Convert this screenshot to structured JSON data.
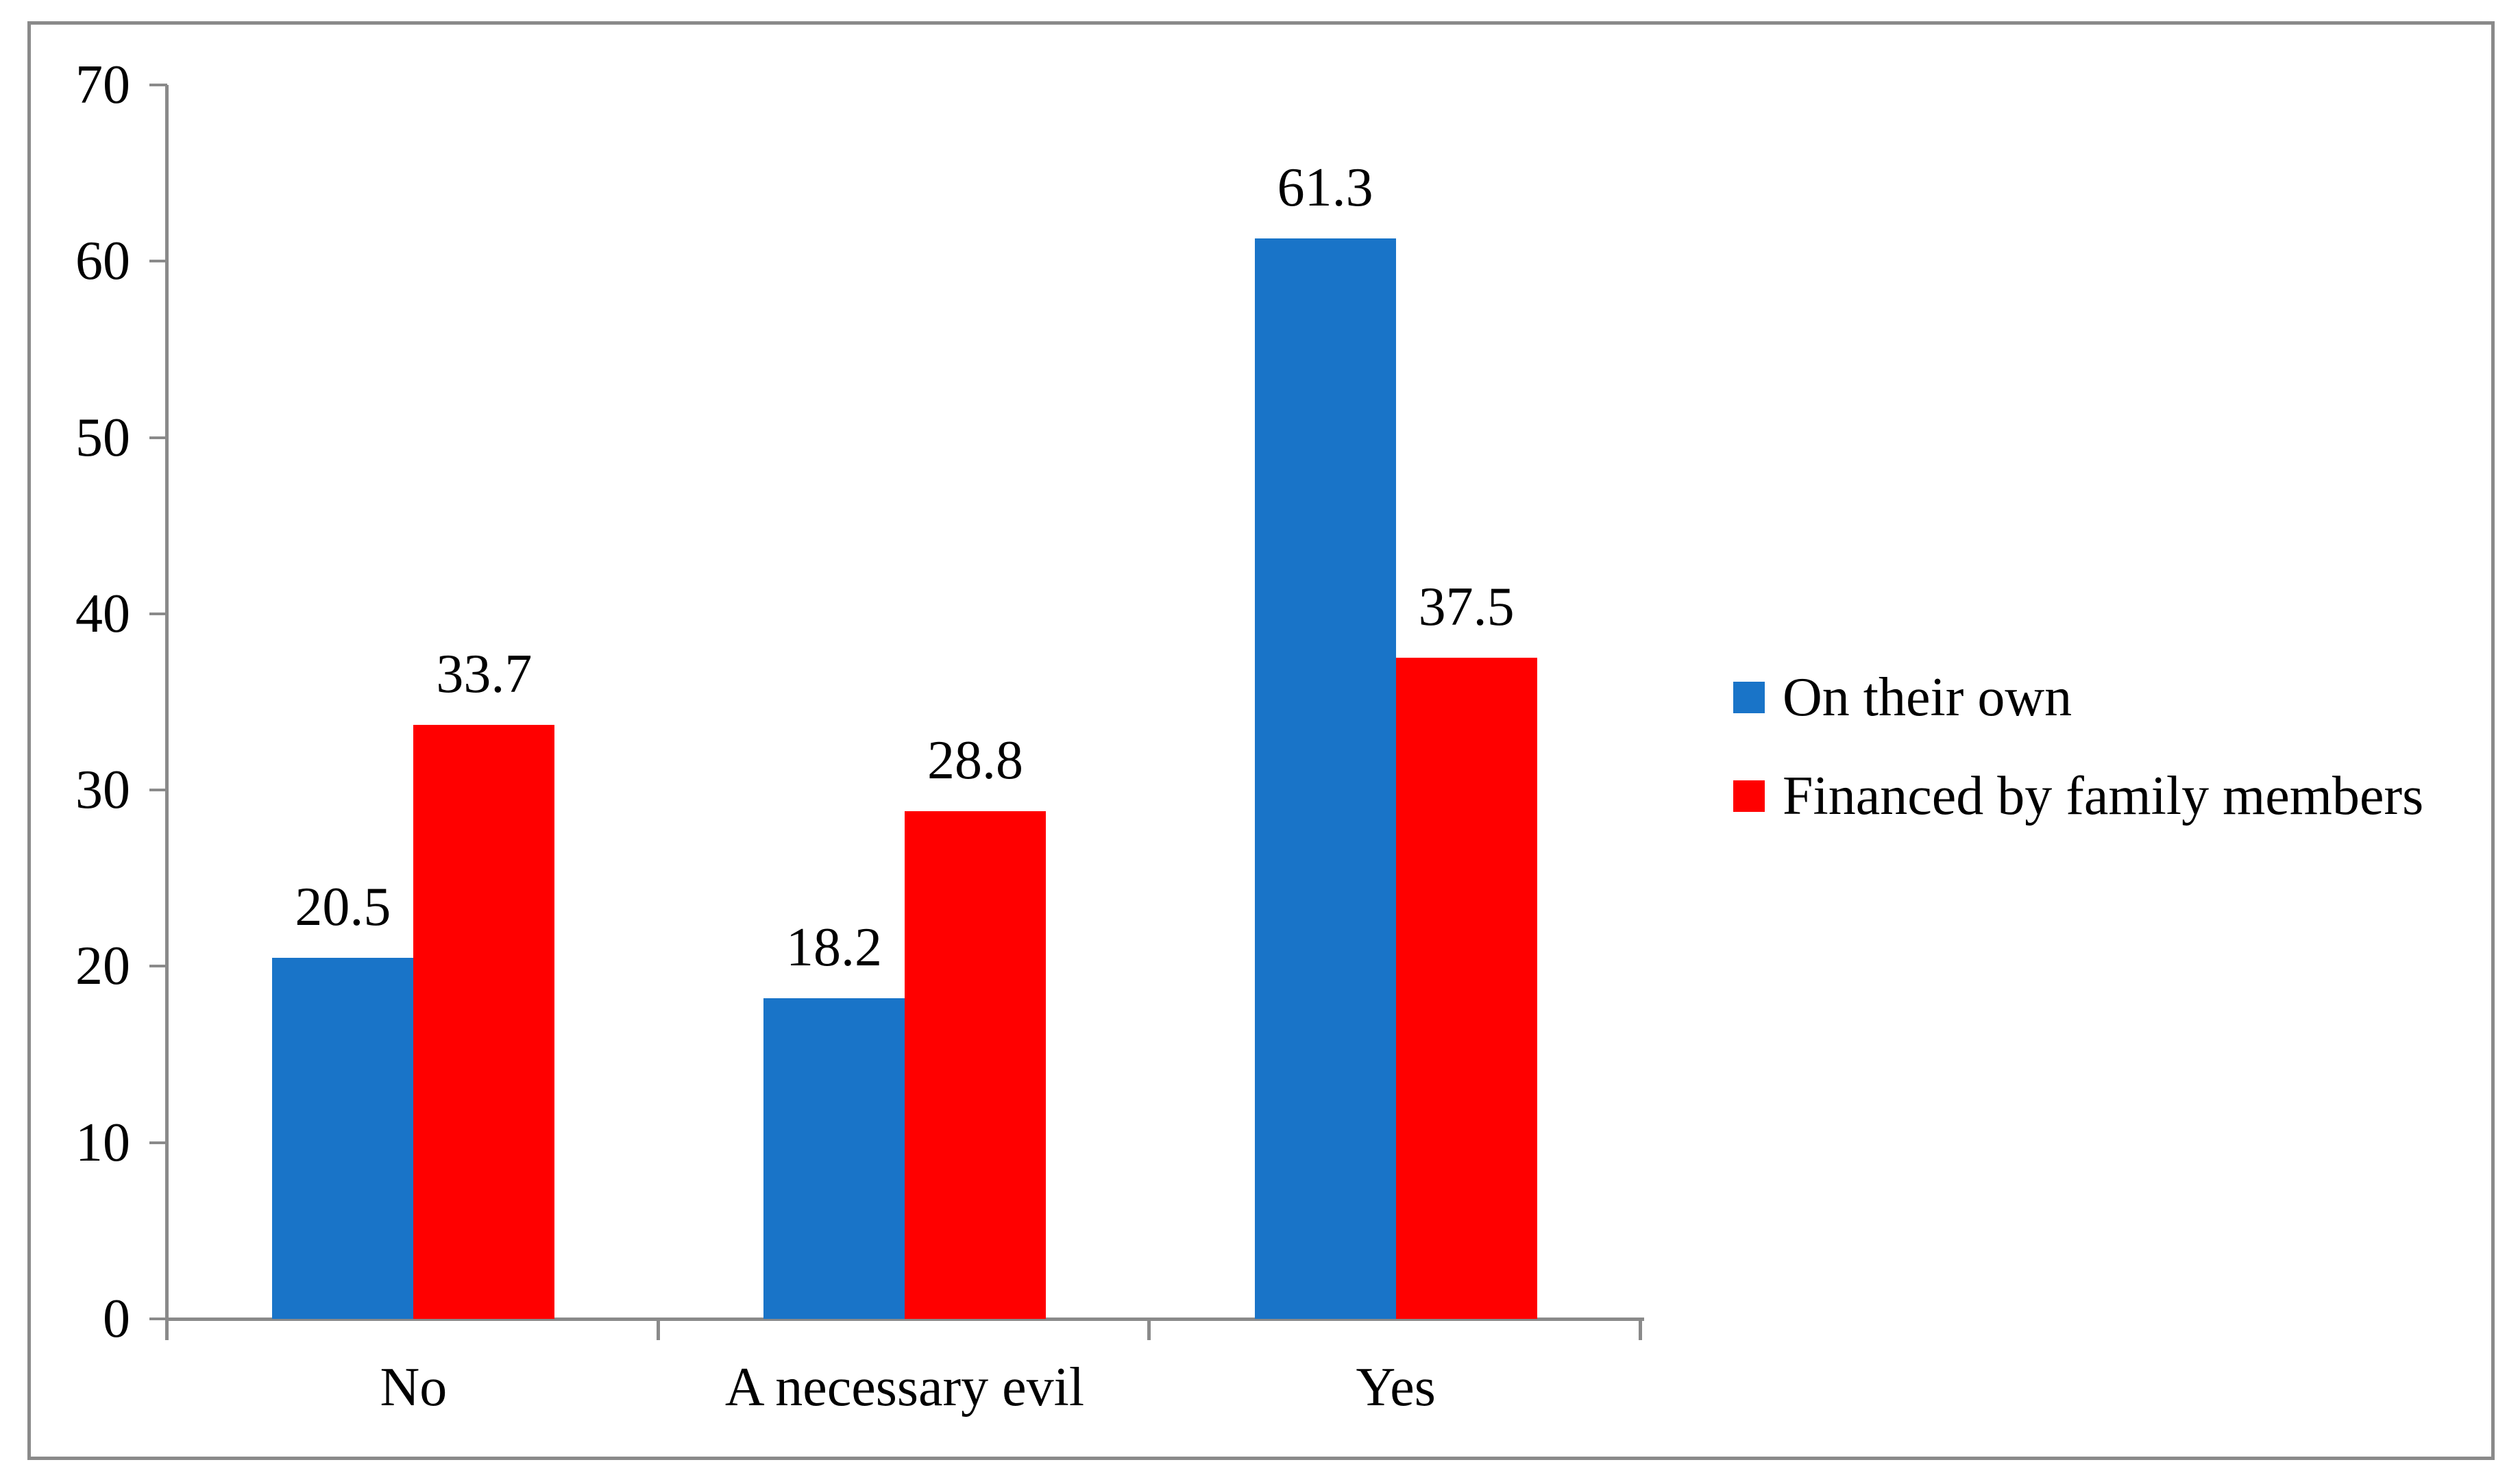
{
  "chart_data": {
    "type": "bar",
    "title": "",
    "xlabel": "",
    "ylabel": "",
    "categories": [
      "No",
      "A necessary evil",
      "Yes"
    ],
    "series": [
      {
        "name": "On their own",
        "color": "#1974C8",
        "values": [
          20.5,
          18.2,
          61.3
        ]
      },
      {
        "name": "Financed by family members",
        "color": "#FF0000",
        "values": [
          33.7,
          28.8,
          37.5
        ]
      }
    ],
    "ylim": [
      0,
      70
    ],
    "yticks": [
      0,
      10,
      20,
      30,
      40,
      50,
      60,
      70
    ],
    "grid": false,
    "data_labels": true,
    "legend_position": "right",
    "axis_color": "#8A8A8A",
    "frame_color": "#8A8A8A",
    "text_color": "#000000",
    "background_color": "#FFFFFF"
  }
}
